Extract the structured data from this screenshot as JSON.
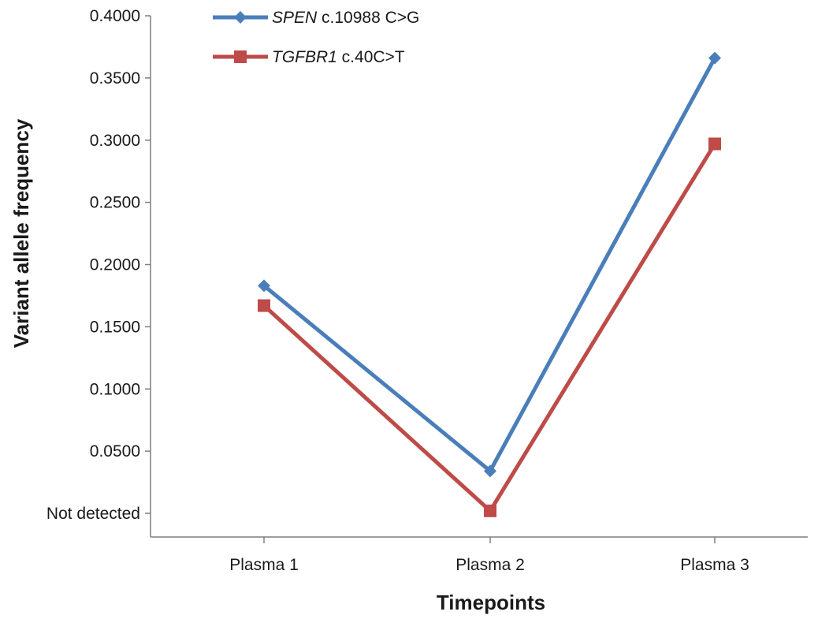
{
  "chart_data": {
    "type": "line",
    "categories": [
      "Plasma 1",
      "Plasma 2",
      "Plasma 3"
    ],
    "xlabel": "Timepoints",
    "ylabel": "Variant allele frequency",
    "ylim": [
      0,
      0.4
    ],
    "y_ticks": [
      {
        "value": 0.4,
        "label": "0.4000"
      },
      {
        "value": 0.35,
        "label": "0.3500"
      },
      {
        "value": 0.3,
        "label": "0.3000"
      },
      {
        "value": 0.25,
        "label": "0.2500"
      },
      {
        "value": 0.2,
        "label": "0.2000"
      },
      {
        "value": 0.15,
        "label": "0.1500"
      },
      {
        "value": 0.1,
        "label": "0.1000"
      },
      {
        "value": 0.05,
        "label": "0.0500"
      },
      {
        "value": 0,
        "label": "Not detected"
      }
    ],
    "grid": false,
    "legend_position": "top-left",
    "series": [
      {
        "gene": "SPEN",
        "variant": "c.10988 C>G",
        "color": "#4a7ebb",
        "marker": "diamond",
        "values": [
          0.183,
          0.034,
          0.366
        ]
      },
      {
        "gene": "TGFBR1",
        "variant": "c.40C>T",
        "color": "#be4b48",
        "marker": "square",
        "values": [
          0.167,
          0.002,
          0.297
        ]
      }
    ]
  }
}
